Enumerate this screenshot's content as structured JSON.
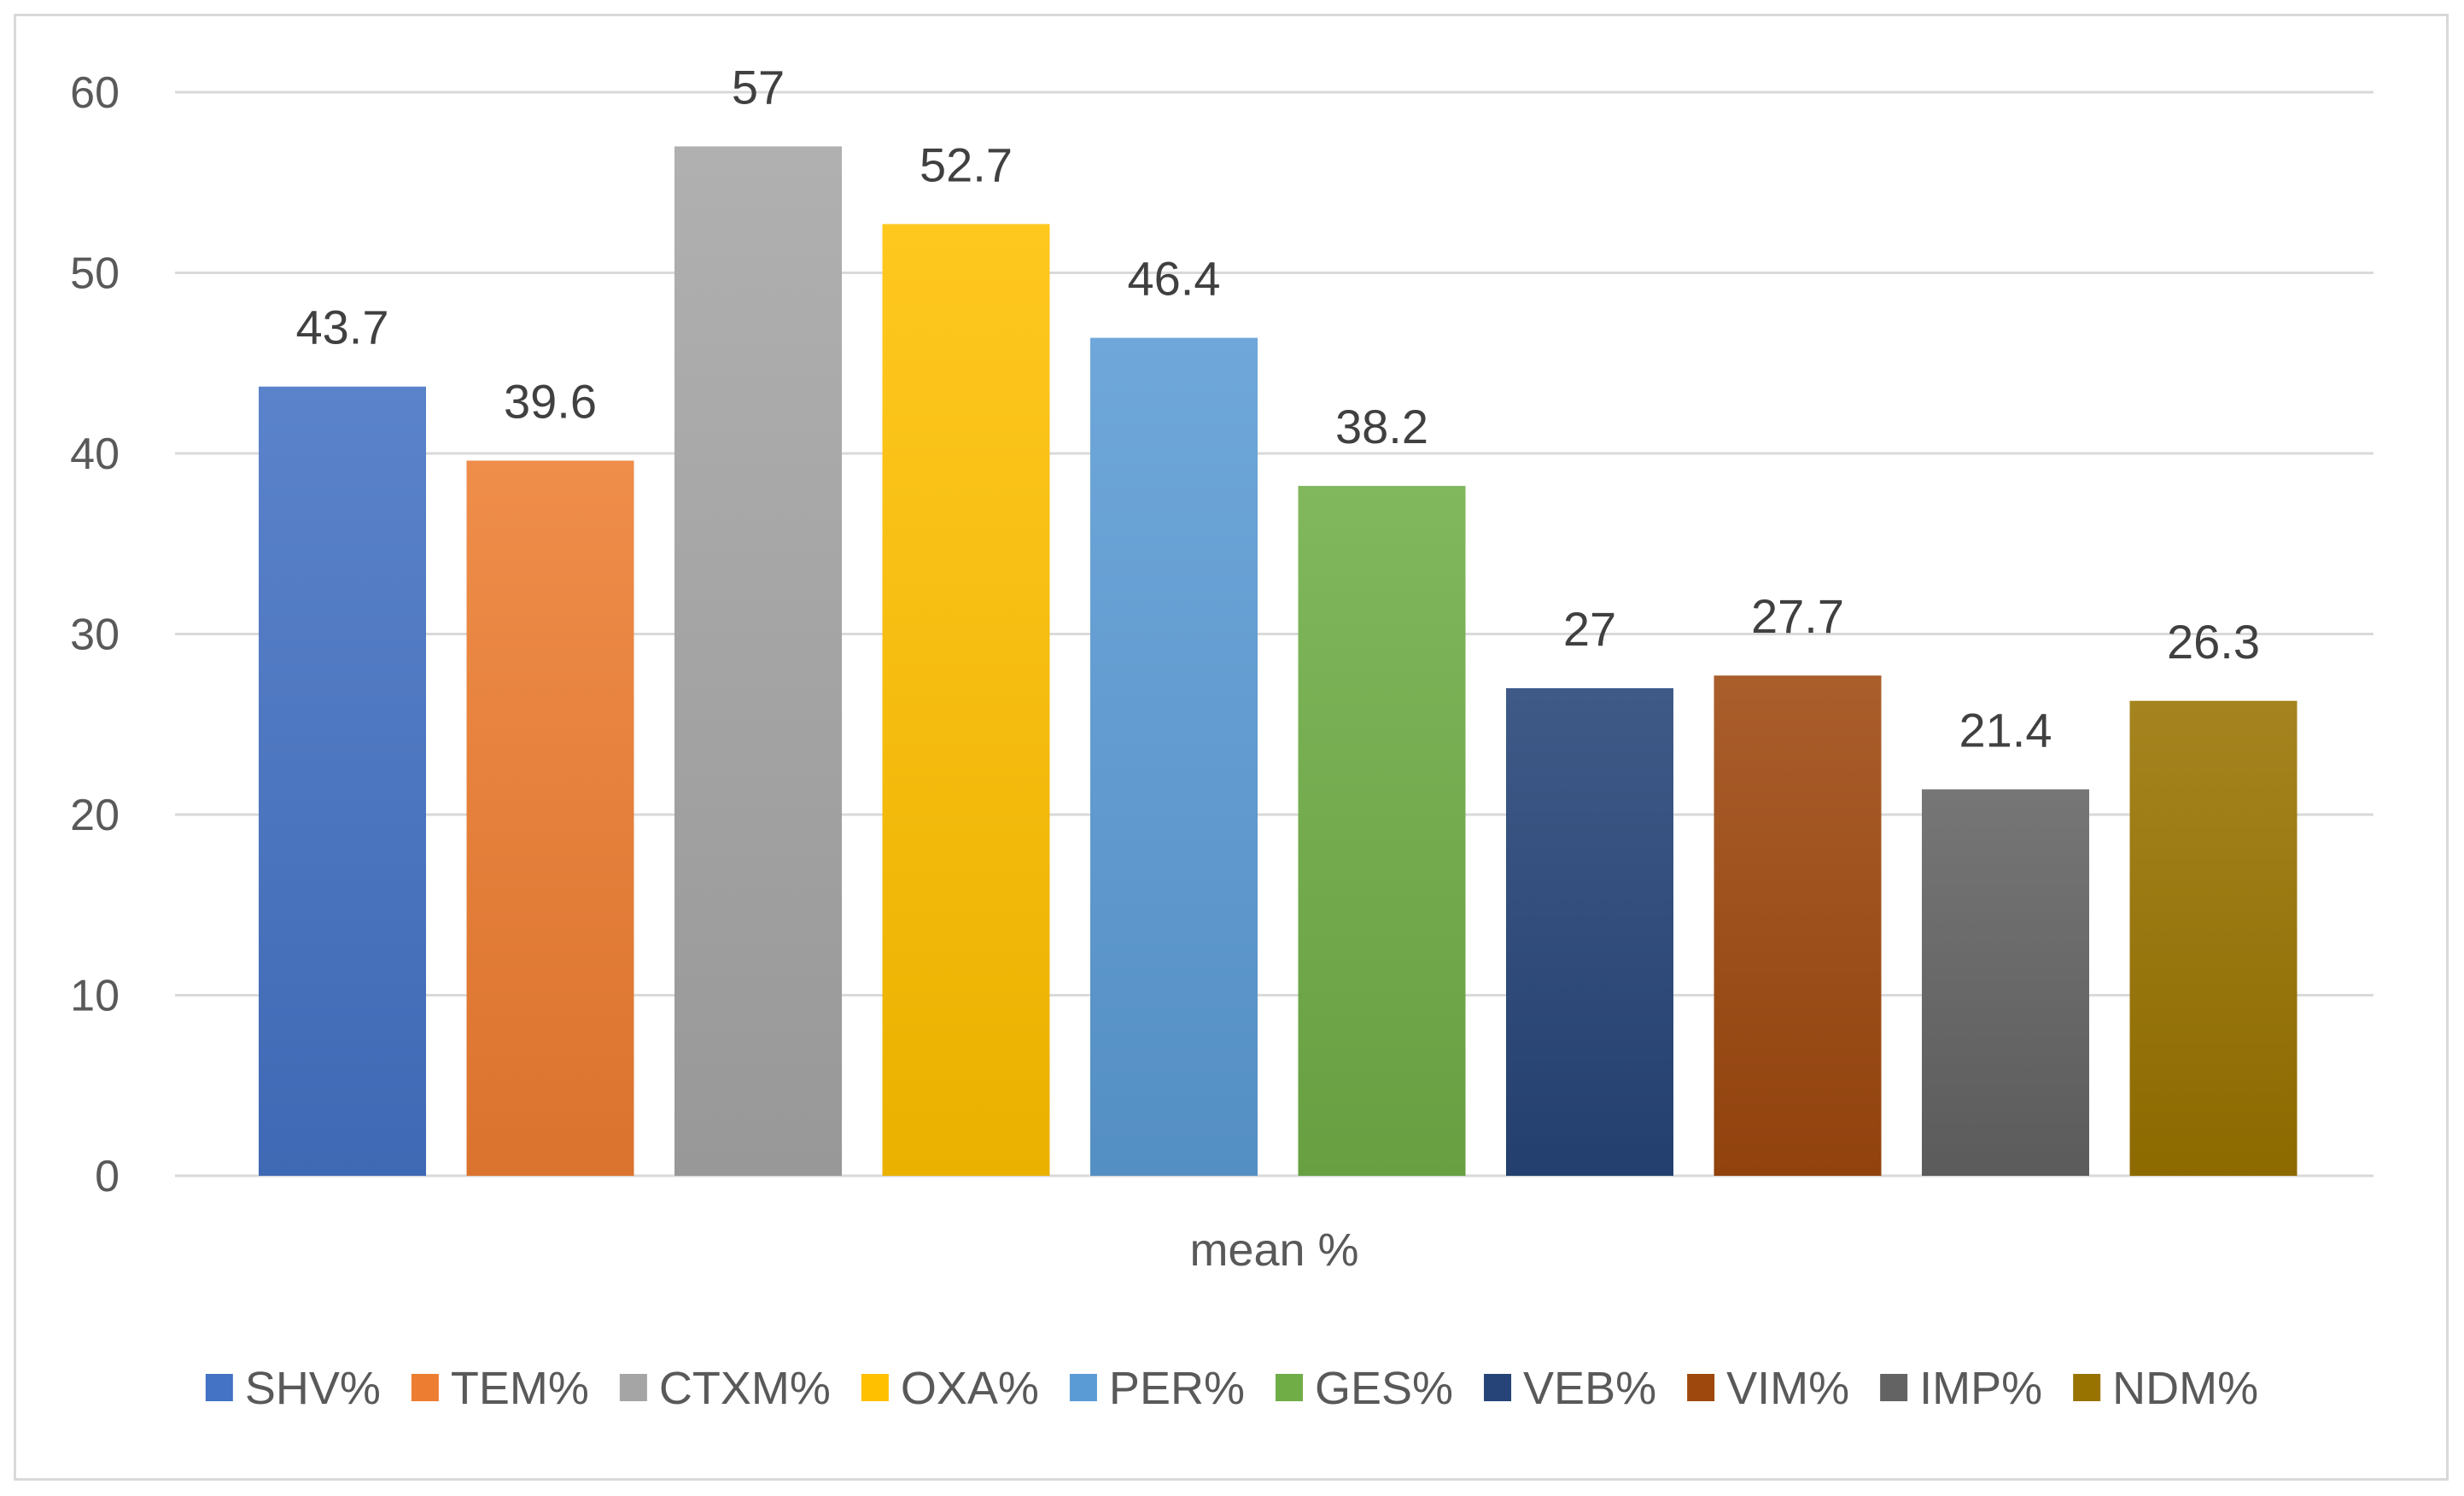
{
  "chart_data": {
    "type": "bar",
    "title": "",
    "xlabel": "mean %",
    "ylabel": "",
    "ylim": [
      0,
      60
    ],
    "yticks": [
      0,
      10,
      20,
      30,
      40,
      50,
      60
    ],
    "grid": true,
    "legend_position": "bottom",
    "categories": [
      "mean %"
    ],
    "series": [
      {
        "name": "SHV%",
        "value": 43.7,
        "label": "43.7",
        "color": "#4472c4"
      },
      {
        "name": "TEM%",
        "value": 39.6,
        "label": "39.6",
        "color": "#ed7d31"
      },
      {
        "name": "CTXM%",
        "value": 57,
        "label": "57",
        "color": "#a5a5a5"
      },
      {
        "name": "OXA%",
        "value": 52.7,
        "label": "52.7",
        "color": "#ffc000"
      },
      {
        "name": "PER%",
        "value": 46.4,
        "label": "46.4",
        "color": "#5b9bd5"
      },
      {
        "name": "GES%",
        "value": 38.2,
        "label": "38.2",
        "color": "#70ad47"
      },
      {
        "name": "VEB%",
        "value": 27,
        "label": "27",
        "color": "#264478"
      },
      {
        "name": "VIM%",
        "value": 27.7,
        "label": "27.7",
        "color": "#9e480e"
      },
      {
        "name": "IMP%",
        "value": 21.4,
        "label": "21.4",
        "color": "#636363"
      },
      {
        "name": "NDM%",
        "value": 26.3,
        "label": "26.3",
        "color": "#997300"
      }
    ]
  }
}
